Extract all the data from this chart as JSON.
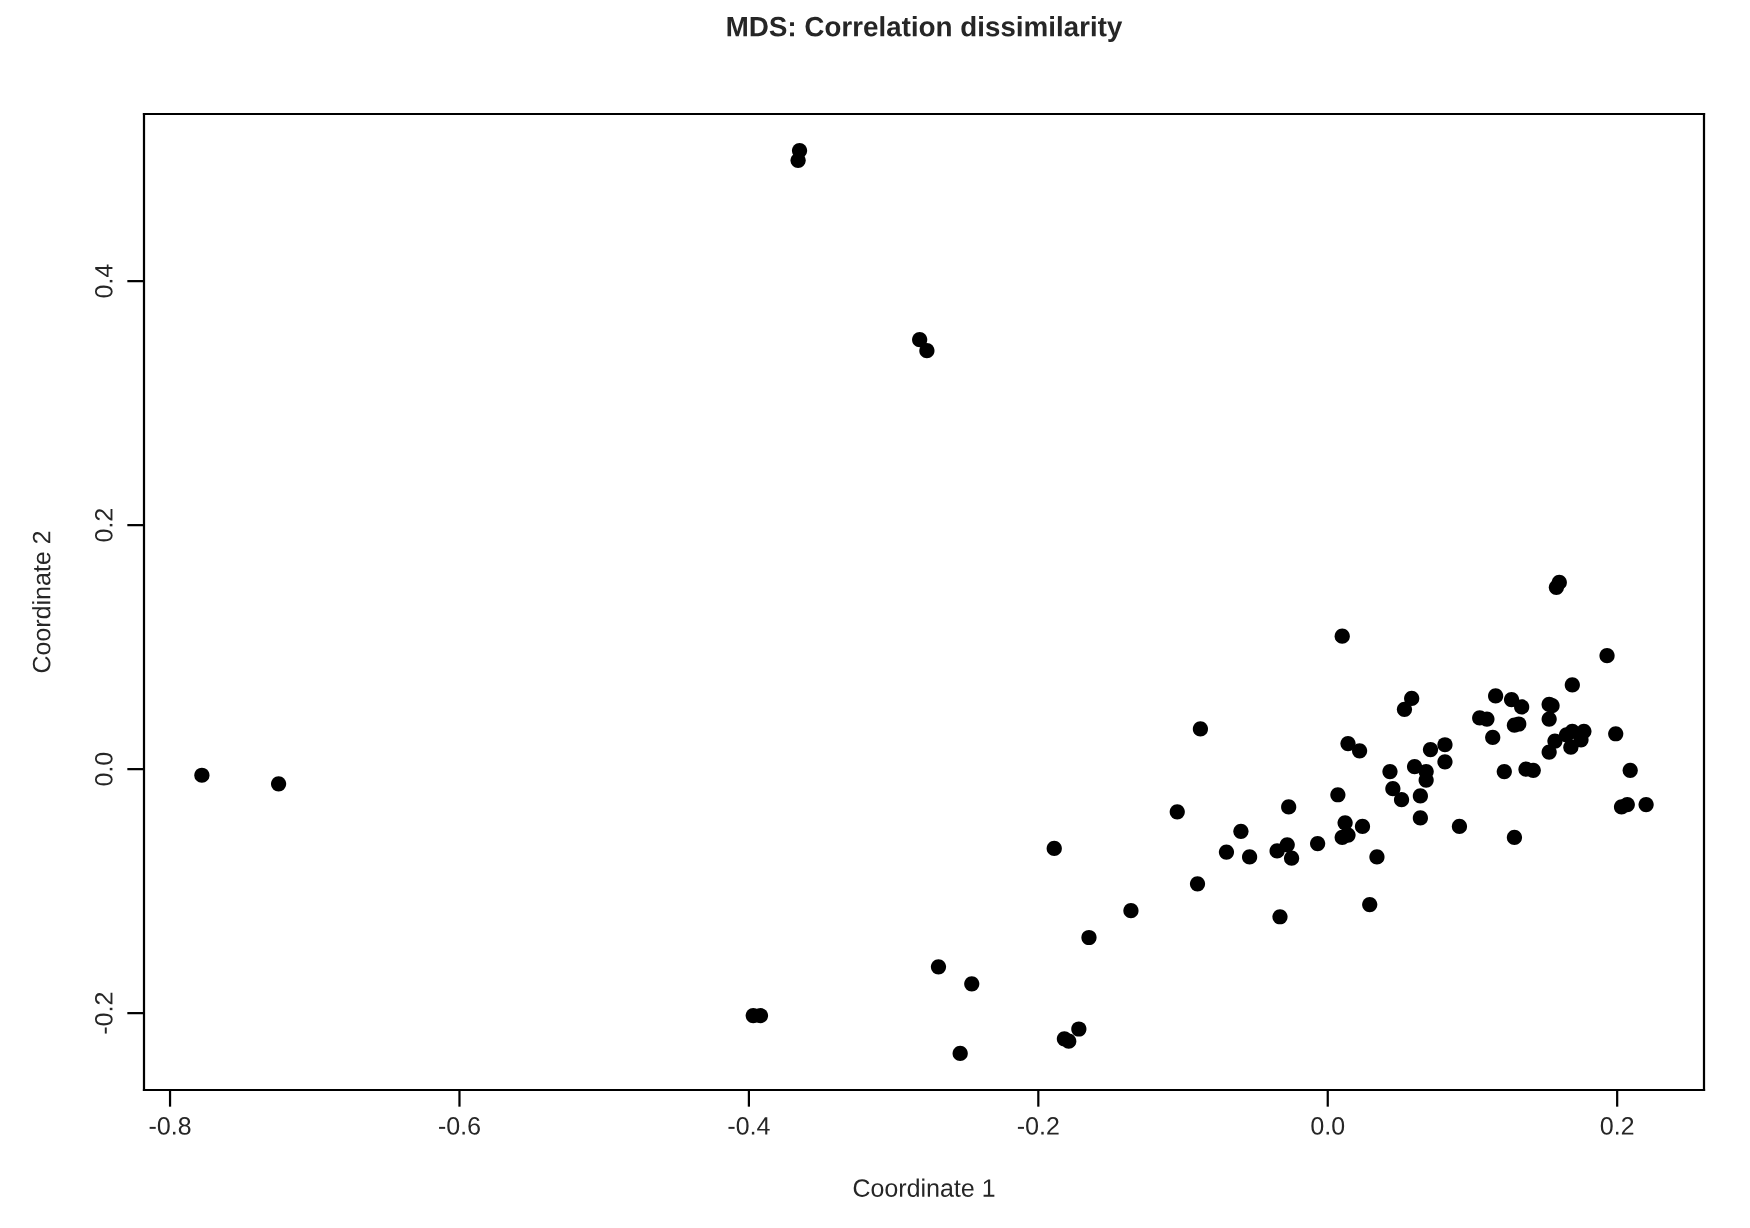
{
  "chart_data": {
    "type": "scatter",
    "title": "MDS: Correlation dissimilarity",
    "xlabel": "Coordinate 1",
    "ylabel": "Coordinate 2",
    "xlim": [
      -0.818,
      0.26
    ],
    "ylim": [
      -0.263,
      0.537
    ],
    "xticks": [
      -0.8,
      -0.6,
      -0.4,
      -0.2,
      {
        "value": 0,
        "label": "0.0"
      },
      0.2
    ],
    "yticks": [
      -0.2,
      {
        "value": 0,
        "label": "0.0"
      },
      0.2,
      0.4
    ],
    "grid": false,
    "marker": "circle",
    "series": [
      {
        "color": "#000000",
        "x": [
          -0.778,
          -0.725,
          -0.365,
          -0.366,
          -0.282,
          -0.277,
          -0.397,
          -0.392,
          -0.269,
          -0.246,
          -0.254,
          -0.189,
          -0.182,
          -0.179,
          -0.172,
          -0.165,
          -0.136,
          -0.104,
          -0.09,
          -0.088,
          -0.07,
          -0.06,
          -0.054,
          -0.035,
          -0.033,
          -0.028,
          -0.027,
          -0.025,
          -0.007,
          0.007,
          0.01,
          0.012,
          0.01,
          0.014,
          0.014,
          0.022,
          0.024,
          0.029,
          0.034,
          0.043,
          0.045,
          0.051,
          0.053,
          0.058,
          0.06,
          0.064,
          0.064,
          0.068,
          0.068,
          0.071,
          0.081,
          0.081,
          0.091,
          0.105,
          0.11,
          0.114,
          0.116,
          0.122,
          0.127,
          0.129,
          0.132,
          0.134,
          0.129,
          0.137,
          0.142,
          0.153,
          0.153,
          0.155,
          0.153,
          0.157,
          0.158,
          0.16,
          0.165,
          0.168,
          0.169,
          0.169,
          0.175,
          0.177,
          0.193,
          0.199,
          0.209,
          0.203,
          0.207,
          0.22
        ],
        "values": [
          -0.005,
          -0.012,
          0.507,
          0.499,
          0.352,
          0.343,
          -0.202,
          -0.202,
          -0.162,
          -0.176,
          -0.233,
          -0.065,
          -0.221,
          -0.223,
          -0.213,
          -0.138,
          -0.116,
          -0.035,
          -0.094,
          0.033,
          -0.068,
          -0.051,
          -0.072,
          -0.067,
          -0.121,
          -0.062,
          -0.031,
          -0.073,
          -0.061,
          -0.021,
          0.109,
          -0.044,
          -0.056,
          -0.054,
          0.021,
          0.015,
          -0.047,
          -0.111,
          -0.072,
          -0.002,
          -0.016,
          -0.025,
          0.049,
          0.058,
          0.002,
          -0.022,
          -0.04,
          -0.002,
          -0.009,
          0.016,
          0.006,
          0.02,
          -0.047,
          0.042,
          0.041,
          0.026,
          0.06,
          -0.002,
          0.057,
          0.036,
          0.037,
          0.051,
          -0.056,
          0.0,
          -0.001,
          0.041,
          0.053,
          0.052,
          0.014,
          0.023,
          0.149,
          0.153,
          0.028,
          0.018,
          0.069,
          0.031,
          0.024,
          0.031,
          0.093,
          0.029,
          -0.001,
          -0.031,
          -0.029,
          -0.029
        ]
      }
    ]
  }
}
